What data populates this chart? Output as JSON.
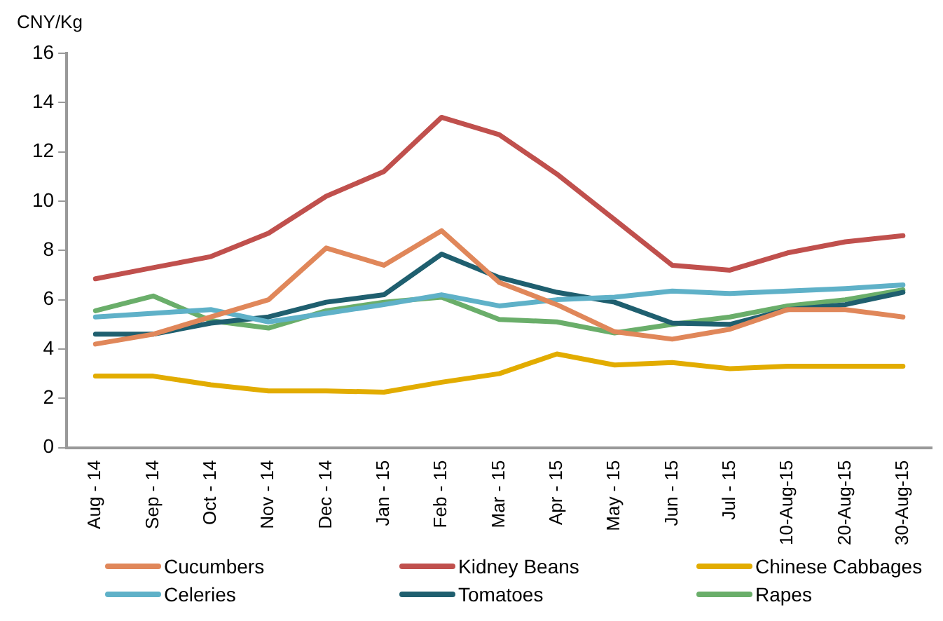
{
  "chart_data": {
    "type": "line",
    "ylabel": "CNY/Kg",
    "categories": [
      "Aug - 14",
      "Sep - 14",
      "Oct - 14",
      "Nov - 14",
      "Dec - 14",
      "Jan - 15",
      "Feb - 15",
      "Mar - 15",
      "Apr - 15",
      "May - 15",
      "Jun - 15",
      "Jul - 15",
      "10-Aug-15",
      "20-Aug-15",
      "30-Aug-15"
    ],
    "ylim": [
      0,
      16
    ],
    "yticks": [
      0,
      2,
      4,
      6,
      8,
      10,
      12,
      14,
      16
    ],
    "grid": false,
    "legend": "bottom",
    "marker": "none",
    "line_style": "solid",
    "series": [
      {
        "name": "Cucumbers",
        "color": "#e0875a",
        "values": [
          4.2,
          4.6,
          5.3,
          6.0,
          8.1,
          7.4,
          8.8,
          6.7,
          5.8,
          4.7,
          4.4,
          4.8,
          5.6,
          5.6,
          5.3
        ]
      },
      {
        "name": "Kidney Beans",
        "color": "#c0504d",
        "values": [
          6.85,
          7.3,
          7.75,
          8.7,
          10.2,
          11.2,
          13.4,
          12.7,
          11.1,
          9.25,
          7.4,
          7.2,
          7.9,
          8.35,
          8.6
        ]
      },
      {
        "name": "Chinese Cabbages",
        "color": "#e2ac00",
        "values": [
          2.9,
          2.9,
          2.55,
          2.3,
          2.3,
          2.25,
          2.65,
          3.0,
          3.8,
          3.35,
          3.45,
          3.2,
          3.3,
          3.3,
          3.3
        ]
      },
      {
        "name": "Celeries",
        "color": "#5fb1c8",
        "values": [
          5.3,
          5.45,
          5.6,
          5.1,
          5.45,
          5.8,
          6.2,
          5.75,
          6.0,
          6.1,
          6.35,
          6.25,
          6.35,
          6.45,
          6.6
        ]
      },
      {
        "name": "Tomatoes",
        "color": "#1f5f6f",
        "values": [
          4.6,
          4.6,
          5.05,
          5.3,
          5.9,
          6.2,
          7.85,
          6.9,
          6.3,
          5.9,
          5.05,
          5.0,
          5.6,
          5.8,
          6.3
        ]
      },
      {
        "name": "Rapes",
        "color": "#6aae6a",
        "values": [
          5.55,
          6.15,
          5.15,
          4.85,
          5.55,
          5.9,
          6.1,
          5.2,
          5.1,
          4.65,
          5.0,
          5.3,
          5.75,
          6.0,
          6.4
        ]
      }
    ]
  }
}
